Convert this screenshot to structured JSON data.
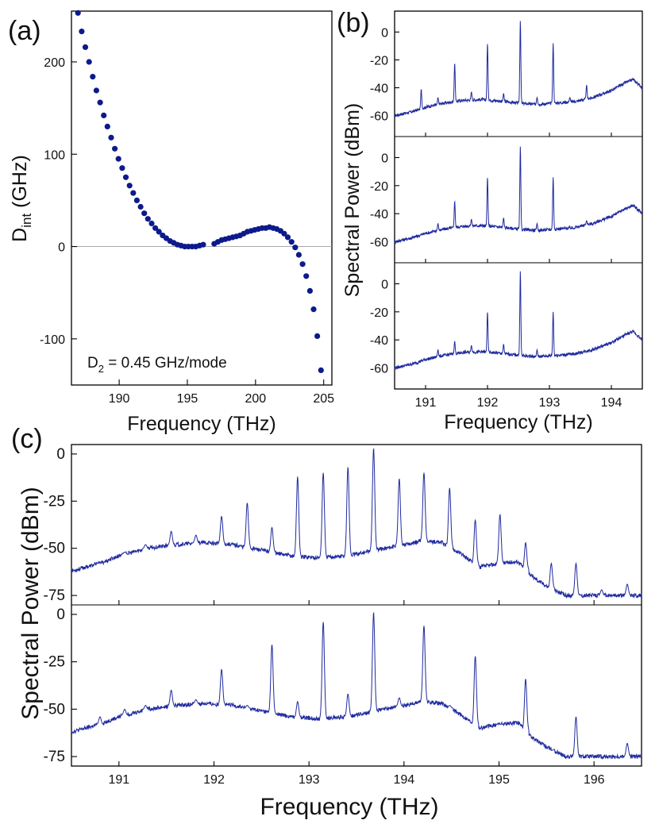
{
  "chart_data": [
    {
      "panel_label": "(a)",
      "type": "scatter",
      "xlabel": "Frequency (THz)",
      "ylabel_main": "D",
      "ylabel_sub": "int",
      "ylabel_unit": " (GHz)",
      "xlim": [
        186.5,
        205.6
      ],
      "ylim": [
        -150,
        255
      ],
      "xticks": [
        "190",
        "195",
        "200",
        "205"
      ],
      "yticks": [
        "200",
        "100",
        "0",
        "-100"
      ],
      "annotation_main": "D",
      "annotation_sub": "2",
      "annotation_rest": " = 0.45 GHz/mode",
      "marker_color": "#0d1a8c",
      "zero_line": true,
      "x": [
        186.98,
        187.25,
        187.52,
        187.79,
        188.06,
        188.33,
        188.6,
        188.87,
        189.14,
        189.41,
        189.68,
        189.95,
        190.22,
        190.49,
        190.76,
        191.03,
        191.3,
        191.57,
        191.84,
        192.11,
        192.38,
        192.65,
        192.92,
        193.19,
        193.46,
        193.73,
        194.0,
        194.27,
        194.54,
        194.81,
        195.08,
        195.35,
        195.62,
        195.89,
        196.16,
        196.97,
        197.24,
        197.51,
        197.78,
        198.05,
        198.32,
        198.59,
        198.86,
        199.13,
        199.4,
        199.67,
        199.94,
        200.21,
        200.48,
        200.75,
        201.02,
        201.29,
        201.56,
        201.83,
        202.1,
        202.37,
        202.64,
        202.91,
        203.18,
        203.45,
        203.72,
        203.99,
        204.26,
        204.53,
        204.8
      ],
      "y": [
        253,
        233,
        216,
        200,
        184,
        169,
        156,
        142,
        130,
        118,
        106,
        95,
        85,
        75,
        66,
        58,
        50,
        43,
        36,
        30,
        25,
        20,
        16,
        12,
        9,
        6,
        4,
        2,
        1,
        0,
        0,
        0,
        0,
        1,
        2,
        3,
        5,
        7,
        8,
        9,
        10,
        11,
        12,
        14,
        16,
        17,
        18,
        19,
        20,
        20,
        21,
        20,
        19,
        17,
        14,
        10,
        5,
        -1,
        -9,
        -19,
        -32,
        -48,
        -68,
        -97,
        -134
      ]
    },
    {
      "panel_label": "(b)",
      "type": "line",
      "xlabel": "Frequency (THz)",
      "ylabel": "Spectral Power (dBm)",
      "xlim": [
        190.5,
        194.5
      ],
      "ylim": [
        -75,
        15
      ],
      "xticks": [
        "191",
        "192",
        "193",
        "194"
      ],
      "yticks": [
        "0",
        "-20",
        "-40",
        "-60"
      ],
      "line_color": "#1f2a9e",
      "baseline_x": [
        190.5,
        190.8,
        191.0,
        191.3,
        191.6,
        191.9,
        192.2,
        192.5,
        192.8,
        193.1,
        193.4,
        193.7,
        194.0,
        194.2,
        194.35,
        194.5
      ],
      "baseline_y": [
        -60,
        -57,
        -54,
        -51,
        -49,
        -48.5,
        -49.5,
        -51,
        -52,
        -51,
        -50,
        -47,
        -42,
        -37,
        -34,
        -40
      ],
      "series": [
        {
          "name": "top",
          "peak_x": [
            190.93,
            191.2,
            191.47,
            191.74,
            192.0,
            192.26,
            192.53,
            192.8,
            193.06,
            193.33,
            193.6
          ],
          "peak_y": [
            -41,
            -47,
            -22,
            -43,
            -8,
            -44,
            8,
            -47,
            -8,
            -47,
            -38
          ]
        },
        {
          "name": "middle",
          "peak_x": [
            191.2,
            191.47,
            191.74,
            192.0,
            192.26,
            192.53,
            192.8,
            193.06,
            193.6
          ],
          "peak_y": [
            -47,
            -31,
            -44,
            -14,
            -43,
            8,
            -47,
            -14,
            -45
          ]
        },
        {
          "name": "bottom",
          "peak_x": [
            191.2,
            191.47,
            191.74,
            192.0,
            192.26,
            192.53,
            192.8,
            193.06
          ],
          "peak_y": [
            -47,
            -41,
            -44,
            -20,
            -43,
            9,
            -47,
            -20
          ]
        }
      ]
    },
    {
      "panel_label": "(c)",
      "type": "line",
      "xlabel": "Frequency (THz)",
      "ylabel": "Spectral Power (dBm)",
      "xlim": [
        190.5,
        196.5
      ],
      "ylim": [
        -80,
        5
      ],
      "xticks": [
        "191",
        "192",
        "193",
        "194",
        "195",
        "196"
      ],
      "yticks": [
        "0",
        "-25",
        "-50",
        "-75"
      ],
      "line_color": "#1f2a9e",
      "baseline_x": [
        190.5,
        190.8,
        191.0,
        191.3,
        191.6,
        191.9,
        192.2,
        192.5,
        192.8,
        193.1,
        193.4,
        193.7,
        193.9,
        194.2,
        194.4,
        194.6,
        194.8,
        195.0,
        195.2,
        195.35,
        195.5,
        195.7,
        196.0,
        196.5
      ],
      "baseline_y": [
        -62,
        -58,
        -54,
        -50,
        -48,
        -47,
        -48,
        -51,
        -54,
        -55,
        -54,
        -51,
        -49,
        -46,
        -47,
        -53,
        -60,
        -58,
        -57,
        -65,
        -70,
        -75,
        -75,
        -75
      ],
      "series": [
        {
          "name": "top",
          "peak_x": [
            190.8,
            191.06,
            191.28,
            191.55,
            191.81,
            192.08,
            192.35,
            192.61,
            192.88,
            193.15,
            193.41,
            193.68,
            193.95,
            194.21,
            194.48,
            194.75,
            195.01,
            195.28,
            195.55,
            195.81,
            196.08,
            196.35
          ],
          "peak_y": [
            -58,
            -52,
            -48,
            -41,
            -43,
            -33,
            -26,
            -39,
            -12,
            -10,
            -7,
            3,
            -13,
            -10,
            -18,
            -35,
            -32,
            -47,
            -58,
            -58,
            -72,
            -69
          ]
        },
        {
          "name": "bottom",
          "peak_x": [
            190.8,
            191.06,
            191.28,
            191.55,
            191.81,
            192.08,
            192.35,
            192.61,
            192.88,
            193.15,
            193.41,
            193.68,
            193.95,
            194.21,
            194.48,
            194.75,
            195.01,
            195.28,
            195.55,
            195.81,
            196.35
          ],
          "peak_y": [
            -54,
            -50,
            -48,
            -40,
            -45,
            -29,
            -48,
            -16,
            -46,
            -4,
            -42,
            1,
            -44,
            -6,
            -48,
            -22,
            -58,
            -34,
            -72,
            -54,
            -68
          ]
        }
      ]
    }
  ]
}
